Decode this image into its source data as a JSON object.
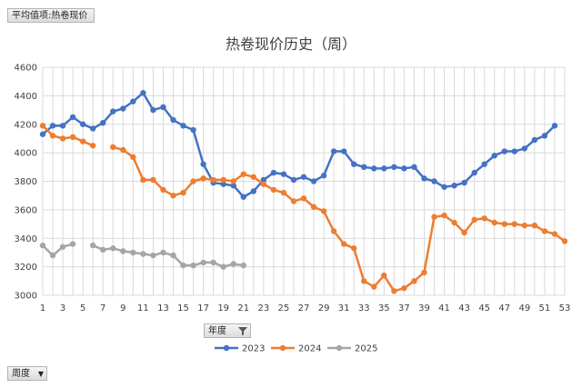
{
  "pivot": {
    "value_field": "平均值项:热卷现价",
    "row_field": "周度",
    "column_field": "年度"
  },
  "chart_data": {
    "type": "line",
    "title": "热卷现价历史（周）",
    "xlabel": "",
    "ylabel": "",
    "x_ticks": [
      1,
      3,
      5,
      7,
      9,
      11,
      13,
      15,
      17,
      19,
      21,
      23,
      25,
      27,
      29,
      31,
      33,
      35,
      37,
      39,
      41,
      43,
      45,
      47,
      49,
      51,
      53
    ],
    "xlim": [
      1,
      53
    ],
    "ylim": [
      3000,
      4600
    ],
    "y_ticks": [
      3000,
      3200,
      3400,
      3600,
      3800,
      4000,
      4200,
      4400,
      4600
    ],
    "grid": true,
    "legend": "bottom",
    "series": [
      {
        "name": "2023",
        "color": "#4472c4",
        "points": [
          [
            1,
            4130
          ],
          [
            2,
            4190
          ],
          [
            3,
            4190
          ],
          [
            4,
            4250
          ],
          [
            5,
            4200
          ],
          [
            6,
            4170
          ],
          [
            7,
            4210
          ],
          [
            8,
            4290
          ],
          [
            9,
            4310
          ],
          [
            10,
            4360
          ],
          [
            11,
            4420
          ],
          [
            12,
            4300
          ],
          [
            13,
            4320
          ],
          [
            14,
            4230
          ],
          [
            15,
            4190
          ],
          [
            16,
            4160
          ],
          [
            17,
            3920
          ],
          [
            18,
            3790
          ],
          [
            19,
            3780
          ],
          [
            20,
            3770
          ],
          [
            21,
            3690
          ],
          [
            22,
            3730
          ],
          [
            23,
            3810
          ],
          [
            24,
            3860
          ],
          [
            25,
            3850
          ],
          [
            26,
            3810
          ],
          [
            27,
            3830
          ],
          [
            28,
            3800
          ],
          [
            29,
            3840
          ],
          [
            30,
            4010
          ],
          [
            31,
            4010
          ],
          [
            32,
            3920
          ],
          [
            33,
            3900
          ],
          [
            34,
            3890
          ],
          [
            35,
            3890
          ],
          [
            36,
            3900
          ],
          [
            37,
            3890
          ],
          [
            38,
            3900
          ],
          [
            39,
            3820
          ],
          [
            40,
            3800
          ],
          [
            41,
            3760
          ],
          [
            42,
            3770
          ],
          [
            43,
            3790
          ],
          [
            44,
            3860
          ],
          [
            45,
            3920
          ],
          [
            46,
            3980
          ],
          [
            47,
            4010
          ],
          [
            48,
            4010
          ],
          [
            49,
            4030
          ],
          [
            50,
            4090
          ],
          [
            51,
            4120
          ],
          [
            52,
            4190
          ]
        ]
      },
      {
        "name": "2024",
        "color": "#ed7d31",
        "points": [
          [
            1,
            4190
          ],
          [
            2,
            4120
          ],
          [
            3,
            4100
          ],
          [
            4,
            4110
          ],
          [
            5,
            4080
          ],
          [
            6,
            4050
          ],
          [
            7,
            null
          ],
          [
            8,
            4040
          ],
          [
            9,
            4020
          ],
          [
            10,
            3970
          ],
          [
            11,
            3810
          ],
          [
            12,
            3810
          ],
          [
            13,
            3740
          ],
          [
            14,
            3700
          ],
          [
            15,
            3720
          ],
          [
            16,
            3800
          ],
          [
            17,
            3820
          ],
          [
            18,
            3810
          ],
          [
            19,
            3810
          ],
          [
            20,
            3800
          ],
          [
            21,
            3850
          ],
          [
            22,
            3830
          ],
          [
            23,
            3780
          ],
          [
            24,
            3740
          ],
          [
            25,
            3720
          ],
          [
            26,
            3660
          ],
          [
            27,
            3680
          ],
          [
            28,
            3620
          ],
          [
            29,
            3590
          ],
          [
            30,
            3450
          ],
          [
            31,
            3360
          ],
          [
            32,
            3330
          ],
          [
            33,
            3100
          ],
          [
            34,
            3060
          ],
          [
            35,
            3140
          ],
          [
            36,
            3030
          ],
          [
            37,
            3050
          ],
          [
            38,
            3100
          ],
          [
            39,
            3160
          ],
          [
            40,
            3550
          ],
          [
            41,
            3560
          ],
          [
            42,
            3510
          ],
          [
            43,
            3440
          ],
          [
            44,
            3530
          ],
          [
            45,
            3540
          ],
          [
            46,
            3510
          ],
          [
            47,
            3500
          ],
          [
            48,
            3500
          ],
          [
            49,
            3490
          ],
          [
            50,
            3490
          ],
          [
            51,
            3450
          ],
          [
            52,
            3430
          ],
          [
            53,
            3380
          ]
        ]
      },
      {
        "name": "2025",
        "color": "#a5a5a5",
        "points": [
          [
            1,
            3350
          ],
          [
            2,
            3280
          ],
          [
            3,
            3340
          ],
          [
            4,
            3360
          ],
          [
            5,
            null
          ],
          [
            6,
            3350
          ],
          [
            7,
            3320
          ],
          [
            8,
            3330
          ],
          [
            9,
            3310
          ],
          [
            10,
            3300
          ],
          [
            11,
            3290
          ],
          [
            12,
            3280
          ],
          [
            13,
            3300
          ],
          [
            14,
            3280
          ],
          [
            15,
            3210
          ],
          [
            16,
            3210
          ],
          [
            17,
            3230
          ],
          [
            18,
            3230
          ],
          [
            19,
            3200
          ],
          [
            20,
            3220
          ],
          [
            21,
            3210
          ]
        ]
      }
    ]
  }
}
